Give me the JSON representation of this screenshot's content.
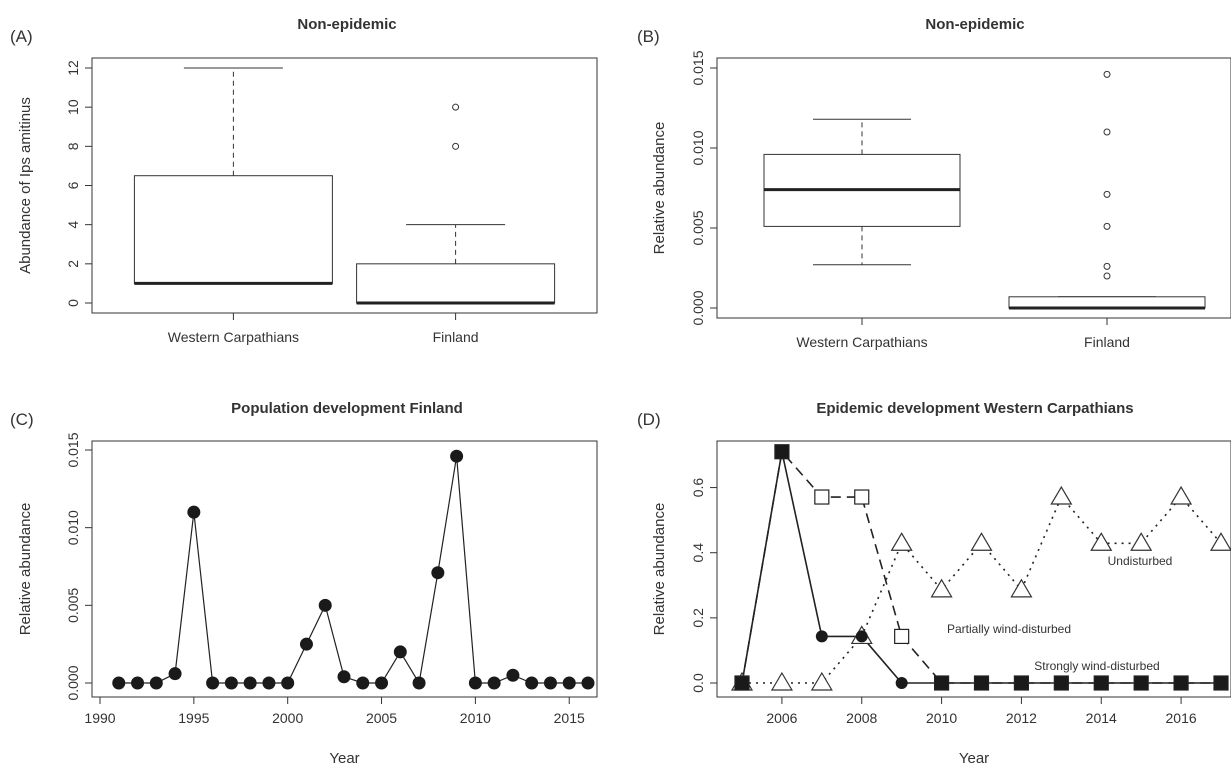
{
  "chart_data": [
    {
      "panel": "(A)",
      "type": "box",
      "title": "Non-epidemic",
      "xlabel": "",
      "ylabel": "Abundance of Ips amitinus",
      "ylim": [
        0,
        12
      ],
      "yticks": [
        "0",
        "2",
        "4",
        "6",
        "8",
        "10",
        "12"
      ],
      "categories": [
        "Western Carpathians",
        "Finland"
      ],
      "boxes": [
        {
          "min": 1,
          "q1": 1,
          "median": 1,
          "q3": 6.5,
          "max": 12,
          "outliers": []
        },
        {
          "min": 0,
          "q1": 0,
          "median": 0,
          "q3": 2,
          "max": 4,
          "outliers": [
            8,
            10
          ]
        }
      ]
    },
    {
      "panel": "(B)",
      "type": "box",
      "title": "Non-epidemic",
      "xlabel": "",
      "ylabel": "Relative abundance",
      "ylim": [
        0,
        0.015
      ],
      "yticks": [
        "0.000",
        "0.005",
        "0.010",
        "0.015"
      ],
      "categories": [
        "Western Carpathians",
        "Finland"
      ],
      "boxes": [
        {
          "min": 0.0027,
          "q1": 0.0051,
          "median": 0.0074,
          "q3": 0.0096,
          "max": 0.0118,
          "outliers": []
        },
        {
          "min": 0,
          "q1": 0,
          "median": 0,
          "q3": 0.0007,
          "max": 0.0007,
          "outliers": [
            0.002,
            0.0026,
            0.0051,
            0.0071,
            0.011,
            0.0146
          ]
        }
      ]
    },
    {
      "panel": "(C)",
      "type": "line",
      "title": "Population development Finland",
      "xlabel": "Year",
      "ylabel": "Relative abundance",
      "xlim": [
        1990,
        2016
      ],
      "ylim": [
        0,
        0.015
      ],
      "xticks": [
        "1990",
        "1995",
        "2000",
        "2005",
        "2010",
        "2015"
      ],
      "yticks": [
        "0.000",
        "0.005",
        "0.010",
        "0.015"
      ],
      "x": [
        1991,
        1992,
        1993,
        1994,
        1995,
        1996,
        1997,
        1998,
        1999,
        2000,
        2001,
        2002,
        2003,
        2004,
        2005,
        2006,
        2007,
        2008,
        2009,
        2010,
        2011,
        2012,
        2013,
        2014,
        2015,
        2016
      ],
      "values": [
        0,
        0,
        0,
        0.0006,
        0.011,
        0,
        0,
        0,
        0,
        0,
        0.0025,
        0.005,
        0.0004,
        0,
        0,
        0.002,
        0,
        0.0071,
        0.0146,
        0,
        0,
        0.0005,
        0,
        0,
        0,
        0
      ]
    },
    {
      "panel": "(D)",
      "type": "line",
      "title": "Epidemic development Western Carpathians",
      "xlabel": "Year",
      "ylabel": "Relative abundance",
      "xlim": [
        2005,
        2017
      ],
      "ylim": [
        0,
        0.7
      ],
      "xticks": [
        "2006",
        "2008",
        "2010",
        "2012",
        "2014",
        "2016"
      ],
      "yticks": [
        "0.0",
        "0.2",
        "0.4",
        "0.6"
      ],
      "series": [
        {
          "name": "Strongly wind-disturbed",
          "marker": "filled-circle",
          "line": "solid",
          "x": [
            2005,
            2006,
            2007,
            2008,
            2009,
            2010,
            2011,
            2012,
            2013,
            2014,
            2015,
            2016,
            2017
          ],
          "values": [
            0,
            0.71,
            0.143,
            0.143,
            0,
            0,
            0,
            0,
            0,
            0,
            0,
            0,
            0
          ]
        },
        {
          "name": "Partially wind-disturbed",
          "marker": "open-square",
          "line": "dashed",
          "x": [
            2005,
            2006,
            2007,
            2008,
            2009,
            2010,
            2011,
            2012,
            2013,
            2014,
            2015,
            2016,
            2017
          ],
          "values": [
            0,
            0.71,
            0.571,
            0.571,
            0.143,
            0,
            0,
            0,
            0,
            0,
            0,
            0,
            0
          ]
        },
        {
          "name": "Undisturbed",
          "marker": "open-triangle",
          "line": "dotted",
          "x": [
            2005,
            2006,
            2007,
            2008,
            2009,
            2010,
            2011,
            2012,
            2013,
            2014,
            2015,
            2016,
            2017
          ],
          "values": [
            0,
            0,
            0,
            0.143,
            0.429,
            0.286,
            0.429,
            0.286,
            0.571,
            0.429,
            0.429,
            0.571,
            0.429
          ]
        }
      ]
    }
  ]
}
